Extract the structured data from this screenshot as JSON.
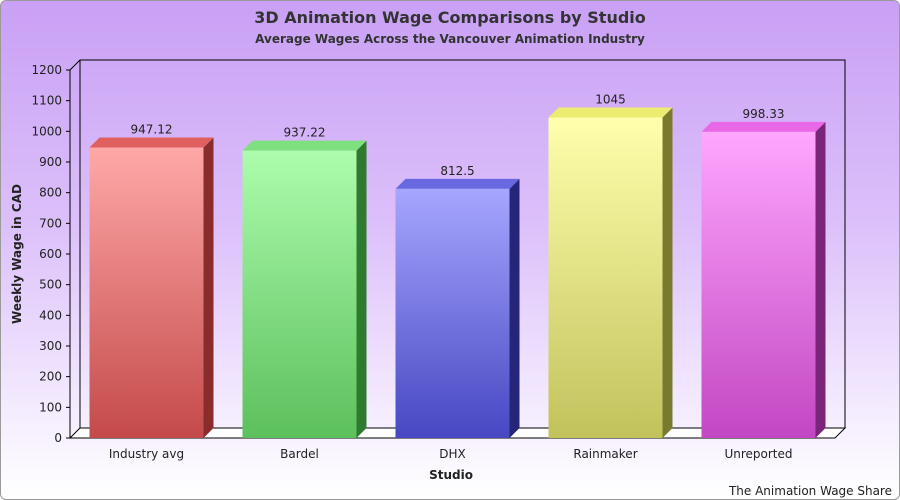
{
  "footer": "The Animation Wage Share",
  "chart_data": {
    "type": "bar",
    "title": "3D Animation Wage Comparisons by Studio",
    "subtitle": "Average Wages Across the Vancouver Animation Industry",
    "xlabel": "Studio",
    "ylabel": "Weekly Wage in CAD",
    "categories": [
      "Industry avg",
      "Bardel",
      "DHX",
      "Rainmaker",
      "Unreported"
    ],
    "values": [
      947.12,
      937.22,
      812.5,
      1045,
      998.33
    ],
    "data_labels": [
      "947.12",
      "937.22",
      "812.5",
      "1045",
      "998.33"
    ],
    "ylim": [
      0,
      1200
    ],
    "yticks": [
      0,
      100,
      200,
      300,
      400,
      500,
      600,
      700,
      800,
      900,
      1000,
      1100,
      1200
    ],
    "grid": false,
    "legend": "none",
    "bar_colors": [
      {
        "top": "#ffa8a8",
        "bottom": "#c44a4a",
        "side": "#8a2c2c",
        "cap": "#e06060"
      },
      {
        "top": "#adfcad",
        "bottom": "#5cc05c",
        "side": "#2f7a2f",
        "cap": "#7ee07e"
      },
      {
        "top": "#a6a6ff",
        "bottom": "#4747c2",
        "side": "#25257a",
        "cap": "#6868e0"
      },
      {
        "top": "#ffffad",
        "bottom": "#c2c25c",
        "side": "#7a7a2f",
        "cap": "#ecec70"
      },
      {
        "top": "#ffa6ff",
        "bottom": "#c247c2",
        "side": "#7a257a",
        "cap": "#e868e8"
      }
    ]
  }
}
